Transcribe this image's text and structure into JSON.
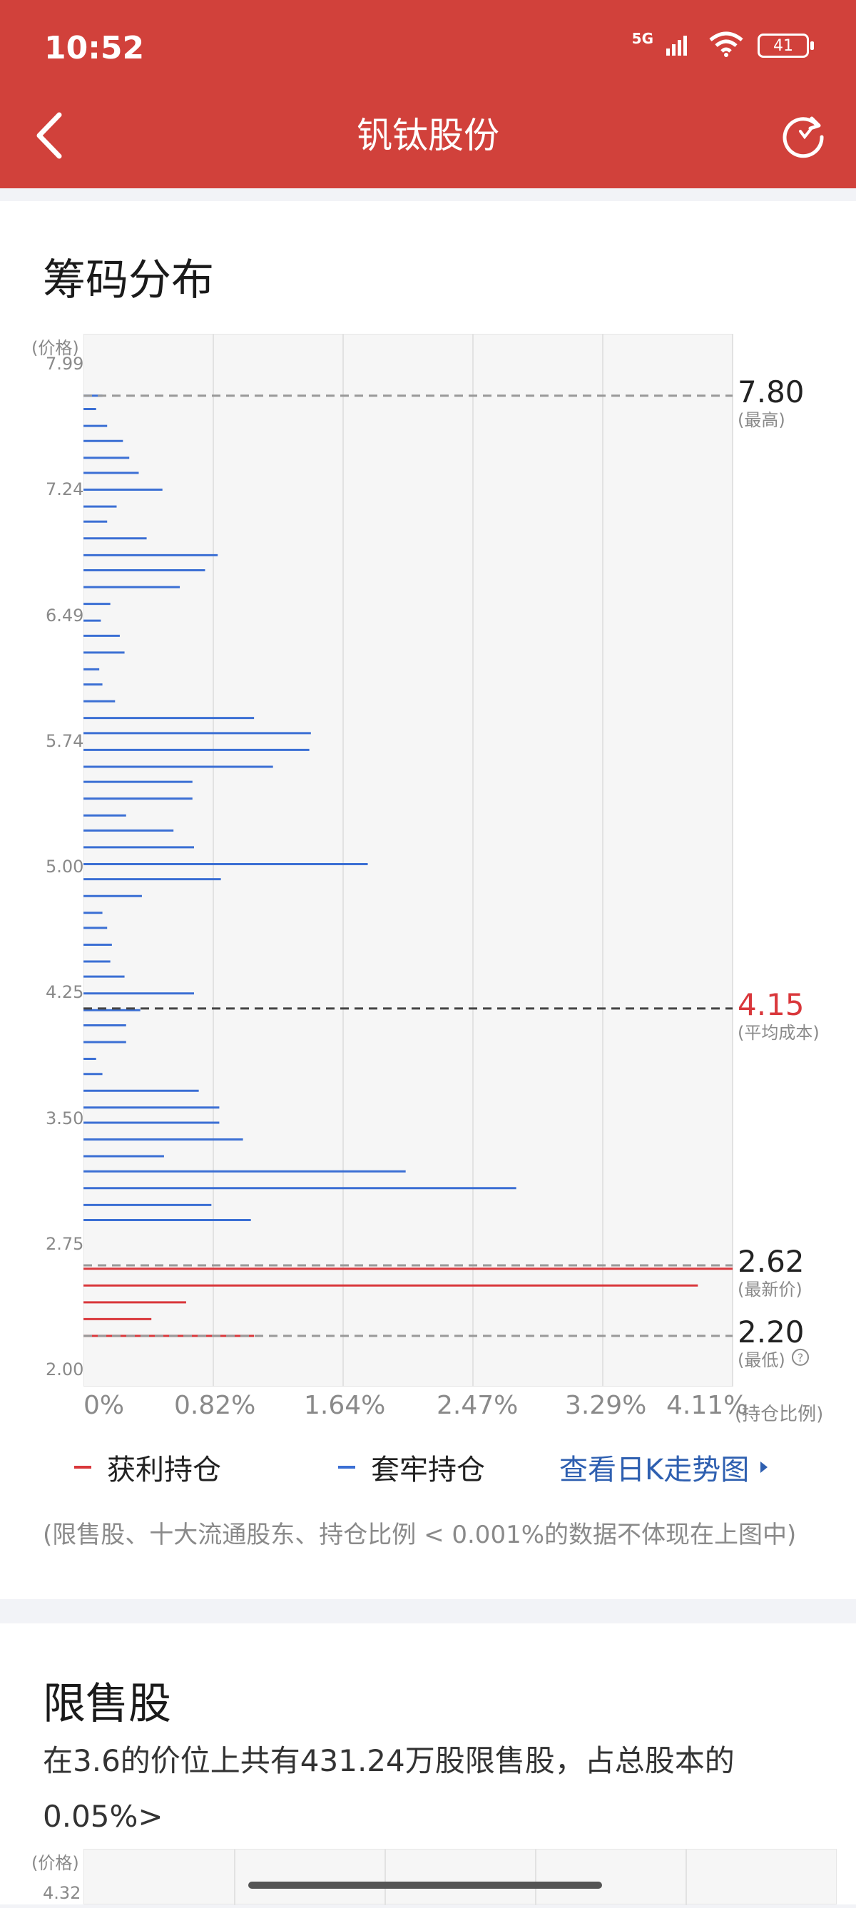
{
  "status_bar": {
    "time": "10:52",
    "network": "5G",
    "battery": "41"
  },
  "nav": {
    "title": "钒钛股份"
  },
  "section1": {
    "title": "筹码分布",
    "y_axis_label": "(价格)",
    "x_axis_label": "(持仓比例)",
    "legend": {
      "profit": "获利持仓",
      "trapped": "套牢持仓",
      "link": "查看日K走势图"
    },
    "note": "(限售股、十大流通股东、持仓比例 < 0.001%的数据不体现在上图中)"
  },
  "section2": {
    "title": "限售股",
    "description": "在3.6的价位上共有431.24万股限售股，占总股本的0.05%>",
    "y_axis_label": "(价格)",
    "y_tick_top": "4.32"
  },
  "colors": {
    "brand": "#d1413b",
    "profit": "#d9373b",
    "trapped": "#3b6fd4",
    "link": "#2e5fb0",
    "ref_line": "#999999"
  },
  "chart_data": {
    "type": "bar",
    "orientation": "horizontal",
    "y_ticks": [
      "7.99",
      "7.24",
      "6.49",
      "5.74",
      "5.00",
      "4.25",
      "3.50",
      "2.75",
      "2.00"
    ],
    "y_range": [
      2.0,
      7.99
    ],
    "x_ticks": [
      "0%",
      "0.82%",
      "1.64%",
      "2.47%",
      "3.29%",
      "4.11%"
    ],
    "x_range": [
      0,
      4.11
    ],
    "reference_lines": [
      {
        "value": "7.80",
        "label": "(最高)",
        "price": 7.8,
        "color": "#999999",
        "text_color": "#222222"
      },
      {
        "value": "4.15",
        "label": "(平均成本)",
        "price": 4.15,
        "color": "#444444",
        "text_color": "#d9373b"
      },
      {
        "value": "2.62",
        "label": "(最新价)",
        "price": 2.62,
        "color": "#999999",
        "text_color": "#222222"
      },
      {
        "value": "2.20",
        "label": "(最低)",
        "price": 2.2,
        "color": "#999999",
        "text_color": "#222222"
      }
    ],
    "series": [
      {
        "name": "套牢持仓",
        "prices": [
          7.8,
          7.72,
          7.62,
          7.53,
          7.43,
          7.34,
          7.24,
          7.14,
          7.05,
          6.95,
          6.85,
          6.76,
          6.66,
          6.56,
          6.46,
          6.37,
          6.27,
          6.17,
          6.08,
          5.98,
          5.88,
          5.79,
          5.69,
          5.59,
          5.5,
          5.4,
          5.3,
          5.21,
          5.11,
          5.01,
          4.92,
          4.82,
          4.72,
          4.63,
          4.53,
          4.43,
          4.34,
          4.24,
          4.14,
          4.05,
          3.95,
          3.85,
          3.76,
          3.66,
          3.56,
          3.47,
          3.37,
          3.27,
          3.18,
          3.08,
          2.98,
          2.89,
          2.79,
          2.69
        ],
        "values": [
          0.12,
          0.08,
          0.15,
          0.25,
          0.29,
          0.35,
          0.5,
          0.21,
          0.15,
          0.4,
          0.85,
          0.77,
          0.61,
          0.17,
          0.11,
          0.23,
          0.26,
          0.1,
          0.12,
          0.2,
          1.08,
          1.44,
          1.43,
          1.2,
          0.69,
          0.69,
          0.27,
          0.57,
          0.7,
          1.8,
          0.87,
          0.37,
          0.12,
          0.15,
          0.18,
          0.17,
          0.26,
          0.7,
          0.36,
          0.27,
          0.27,
          0.08,
          0.12,
          0.73,
          0.86,
          0.86,
          1.01,
          0.51,
          2.04,
          2.74,
          0.81,
          1.06,
          0,
          0
        ]
      },
      {
        "name": "获利持仓",
        "prices": [
          2.6,
          2.5,
          2.4,
          2.3,
          2.2
        ],
        "values": [
          4.11,
          3.89,
          0.65,
          0.43,
          1.08
        ]
      }
    ]
  }
}
